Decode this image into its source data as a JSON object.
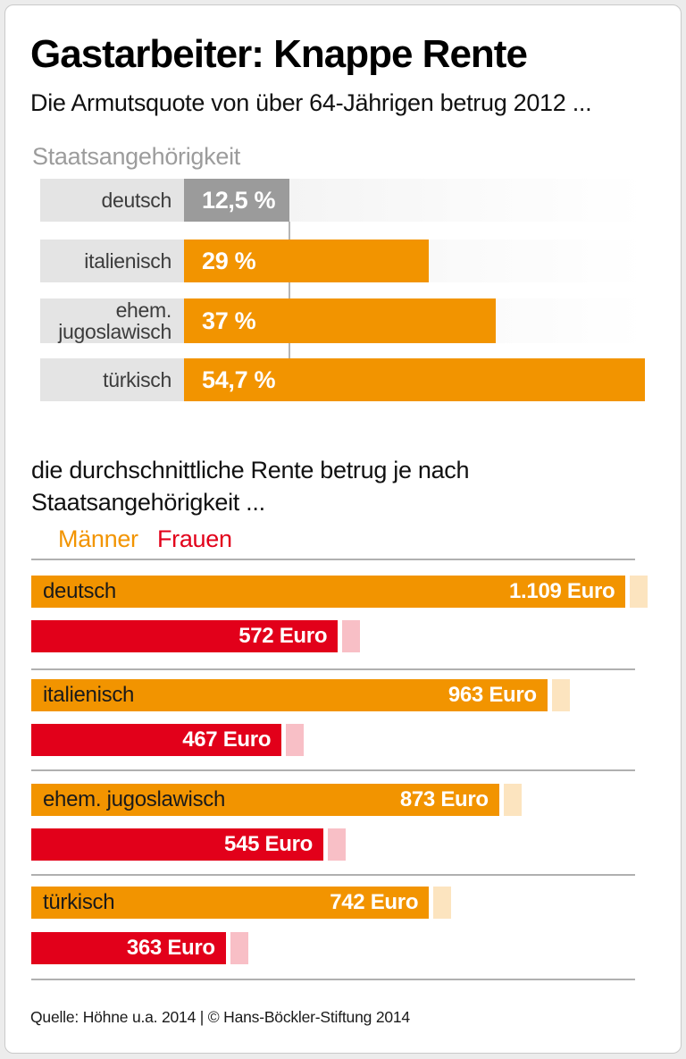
{
  "title": "Gastarbeiter: Knappe Rente",
  "subtitle": "Die Armutsquote von über 64-Jährigen betrug 2012 ...",
  "footer": "Quelle: Höhne u.a. 2014 | © Hans-Böckler-Stiftung 2014",
  "colors": {
    "orange": "#F29400",
    "red": "#E2001A",
    "gray_bar": "#9B9B9B",
    "orange_tint": "#FCE4BF",
    "red_tint": "#F8BFC6"
  },
  "chart_data": [
    {
      "type": "bar",
      "orientation": "horizontal",
      "title": "Staatsangehörigkeit",
      "unit": "%",
      "categories": [
        "deutsch",
        "italienisch",
        "ehem. jugoslawisch",
        "türkisch"
      ],
      "display_labels": [
        "deutsch",
        "italienisch",
        "ehem.\njugoslawisch",
        "türkisch"
      ],
      "values": [
        12.5,
        29,
        37,
        54.7
      ],
      "value_labels": [
        "12,5 %",
        "29 %",
        "37 %",
        "54,7 %"
      ],
      "bar_colors": [
        "#9B9B9B",
        "#F29400",
        "#F29400",
        "#F29400"
      ],
      "reference_line_at": 12.5,
      "xlim": [
        0,
        60
      ],
      "grid": false,
      "legend_position": "none"
    },
    {
      "type": "bar",
      "orientation": "horizontal",
      "title": "die durchschnittliche Rente betrug je nach Staatsangehörigkeit ...",
      "title_display": "die durchschnittliche Rente betrug je nach\nStaatsangehörigkeit ...",
      "unit": "Euro",
      "categories": [
        "deutsch",
        "italienisch",
        "ehem. jugoslawisch",
        "türkisch"
      ],
      "series": [
        {
          "name": "Männer",
          "color": "#F29400",
          "values": [
            1109,
            963,
            873,
            742
          ],
          "value_labels": [
            "1.109 Euro",
            "963 Euro",
            "873 Euro",
            "742 Euro"
          ]
        },
        {
          "name": "Frauen",
          "color": "#E2001A",
          "values": [
            572,
            467,
            545,
            363
          ],
          "value_labels": [
            "572 Euro",
            "467 Euro",
            "545 Euro",
            "363 Euro"
          ]
        }
      ],
      "xlim": [
        0,
        1200
      ],
      "grid": false,
      "legend_position": "top"
    }
  ]
}
